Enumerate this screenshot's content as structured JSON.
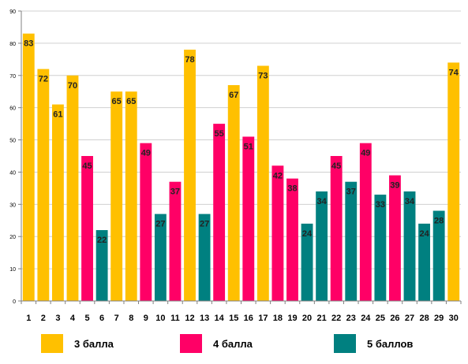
{
  "chart_data": {
    "type": "bar",
    "title": "",
    "xlabel": "",
    "ylabel": "",
    "ylim": [
      0,
      90
    ],
    "yticks": [
      0,
      10,
      20,
      30,
      40,
      50,
      60,
      70,
      80,
      90
    ],
    "grid": "horizontal",
    "legend_position": "bottom",
    "categories": [
      "1",
      "2",
      "3",
      "4",
      "5",
      "6",
      "7",
      "8",
      "9",
      "10",
      "11",
      "12",
      "13",
      "14",
      "15",
      "16",
      "17",
      "18",
      "19",
      "20",
      "21",
      "22",
      "23",
      "24",
      "25",
      "26",
      "27",
      "28",
      "29",
      "30"
    ],
    "values": [
      83,
      72,
      61,
      70,
      45,
      22,
      65,
      65,
      49,
      27,
      37,
      78,
      27,
      55,
      67,
      51,
      73,
      42,
      38,
      24,
      34,
      45,
      37,
      49,
      33,
      39,
      34,
      24,
      28,
      74
    ],
    "groups": [
      0,
      0,
      0,
      0,
      1,
      2,
      0,
      0,
      1,
      2,
      1,
      0,
      2,
      1,
      0,
      1,
      0,
      1,
      1,
      2,
      2,
      1,
      2,
      1,
      2,
      1,
      2,
      2,
      2,
      0
    ],
    "series": [
      {
        "name": "3 балла",
        "color": "#FFC000"
      },
      {
        "name": "4 балла",
        "color": "#FF0066"
      },
      {
        "name": "5 баллов",
        "color": "#008080"
      }
    ],
    "data_labels": true
  }
}
